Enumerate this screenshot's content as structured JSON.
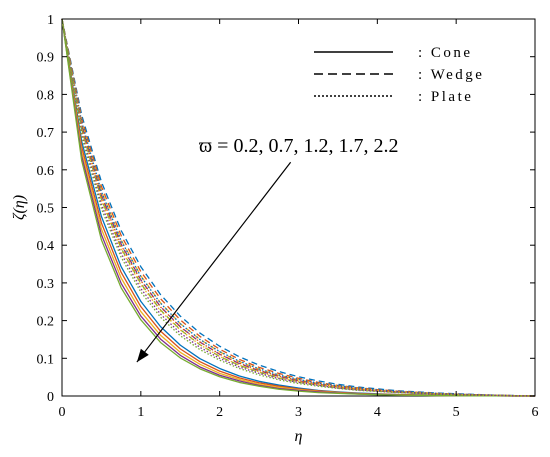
{
  "chart_data": {
    "type": "line",
    "title": "",
    "xlabel": "η",
    "ylabel": "ζ(η)",
    "xlim": [
      0,
      6
    ],
    "ylim": [
      0,
      1
    ],
    "x_ticks": [
      "0",
      "1",
      "2",
      "3",
      "4",
      "5",
      "6"
    ],
    "y_ticks": [
      "0",
      "0.1",
      "0.2",
      "0.3",
      "0.4",
      "0.5",
      "0.6",
      "0.7",
      "0.8",
      "0.9",
      "1"
    ],
    "grid": false,
    "legend": {
      "placement": "top-right",
      "entries": [
        {
          "label": ": Cone",
          "style": "solid"
        },
        {
          "label": ": Wedge",
          "style": "dashed"
        },
        {
          "label": ": Plate",
          "style": "dotted"
        }
      ]
    },
    "annotation": {
      "text": "ϖ = 0.2, 0.7, 1.2, 1.7, 2.2",
      "arrow_from": [
        2.9,
        0.62
      ],
      "arrow_to": [
        0.95,
        0.09
      ]
    },
    "series_colors": [
      "#0072BD",
      "#D95319",
      "#EDB120",
      "#7E2F8E",
      "#77AC30"
    ],
    "x": [
      0,
      0.25,
      0.5,
      0.75,
      1,
      1.25,
      1.5,
      1.75,
      2,
      2.25,
      2.5,
      2.75,
      3,
      3.25,
      3.5,
      3.75,
      4,
      4.25,
      4.5,
      4.75,
      5,
      5.25,
      5.5,
      5.75,
      6
    ],
    "series": [
      {
        "geometry": "cone",
        "param": 0.2,
        "line": "solid",
        "color": "#0072BD",
        "values": [
          1,
          0.675,
          0.476,
          0.343,
          0.251,
          0.184,
          0.135,
          0.099,
          0.073,
          0.053,
          0.039,
          0.029,
          0.021,
          0.015,
          0.011,
          0.008,
          0.006,
          0.004,
          0.003,
          0.002,
          0.0014,
          0.0009,
          0.0005,
          0.0002,
          0
        ]
      },
      {
        "geometry": "cone",
        "param": 0.7,
        "line": "solid",
        "color": "#D95319",
        "values": [
          1,
          0.661,
          0.459,
          0.328,
          0.237,
          0.172,
          0.125,
          0.091,
          0.066,
          0.048,
          0.035,
          0.026,
          0.019,
          0.014,
          0.01,
          0.007,
          0.005,
          0.004,
          0.003,
          0.002,
          0.0012,
          0.0008,
          0.0004,
          0.0002,
          0
        ]
      },
      {
        "geometry": "cone",
        "param": 1.2,
        "line": "solid",
        "color": "#EDB120",
        "values": [
          1,
          0.648,
          0.443,
          0.313,
          0.224,
          0.161,
          0.116,
          0.084,
          0.06,
          0.044,
          0.031,
          0.023,
          0.017,
          0.012,
          0.009,
          0.006,
          0.0045,
          0.003,
          0.0022,
          0.0015,
          0.001,
          0.0007,
          0.0004,
          0.0002,
          0
        ]
      },
      {
        "geometry": "cone",
        "param": 1.7,
        "line": "solid",
        "color": "#7E2F8E",
        "values": [
          1,
          0.636,
          0.428,
          0.299,
          0.212,
          0.151,
          0.108,
          0.077,
          0.055,
          0.04,
          0.028,
          0.02,
          0.015,
          0.011,
          0.008,
          0.0055,
          0.004,
          0.0028,
          0.002,
          0.0014,
          0.001,
          0.0006,
          0.0003,
          0.0001,
          0
        ]
      },
      {
        "geometry": "cone",
        "param": 2.2,
        "line": "solid",
        "color": "#77AC30",
        "values": [
          1,
          0.624,
          0.414,
          0.287,
          0.202,
          0.142,
          0.101,
          0.072,
          0.051,
          0.036,
          0.026,
          0.018,
          0.013,
          0.009,
          0.007,
          0.005,
          0.0035,
          0.0025,
          0.0018,
          0.0012,
          0.0008,
          0.0005,
          0.0003,
          0.0001,
          0
        ]
      },
      {
        "geometry": "wedge",
        "param": 0.2,
        "line": "dashed",
        "color": "#0072BD",
        "values": [
          1,
          0.745,
          0.568,
          0.439,
          0.343,
          0.269,
          0.212,
          0.167,
          0.132,
          0.104,
          0.082,
          0.065,
          0.051,
          0.04,
          0.031,
          0.024,
          0.019,
          0.014,
          0.011,
          0.008,
          0.006,
          0.004,
          0.0025,
          0.001,
          0
        ]
      },
      {
        "geometry": "wedge",
        "param": 0.7,
        "line": "dashed",
        "color": "#D95319",
        "values": [
          1,
          0.735,
          0.556,
          0.426,
          0.33,
          0.258,
          0.202,
          0.158,
          0.124,
          0.097,
          0.076,
          0.06,
          0.047,
          0.036,
          0.028,
          0.022,
          0.017,
          0.013,
          0.01,
          0.007,
          0.005,
          0.0035,
          0.002,
          0.001,
          0
        ]
      },
      {
        "geometry": "wedge",
        "param": 1.2,
        "line": "dashed",
        "color": "#EDB120",
        "values": [
          1,
          0.726,
          0.544,
          0.414,
          0.319,
          0.247,
          0.192,
          0.15,
          0.117,
          0.091,
          0.071,
          0.055,
          0.043,
          0.033,
          0.026,
          0.02,
          0.015,
          0.011,
          0.009,
          0.006,
          0.0045,
          0.003,
          0.002,
          0.001,
          0
        ]
      },
      {
        "geometry": "wedge",
        "param": 1.7,
        "line": "dashed",
        "color": "#7E2F8E",
        "values": [
          1,
          0.717,
          0.533,
          0.403,
          0.308,
          0.237,
          0.184,
          0.143,
          0.111,
          0.086,
          0.067,
          0.052,
          0.04,
          0.031,
          0.024,
          0.018,
          0.014,
          0.01,
          0.008,
          0.006,
          0.004,
          0.003,
          0.0018,
          0.0008,
          0
        ]
      },
      {
        "geometry": "wedge",
        "param": 2.2,
        "line": "dashed",
        "color": "#77AC30",
        "values": [
          1,
          0.708,
          0.522,
          0.392,
          0.298,
          0.228,
          0.176,
          0.136,
          0.105,
          0.081,
          0.063,
          0.048,
          0.037,
          0.029,
          0.022,
          0.017,
          0.013,
          0.01,
          0.007,
          0.005,
          0.0038,
          0.0026,
          0.0016,
          0.0007,
          0
        ]
      },
      {
        "geometry": "plate",
        "param": 0.2,
        "line": "dotted",
        "color": "#0072BD",
        "values": [
          1,
          0.727,
          0.542,
          0.412,
          0.317,
          0.246,
          0.192,
          0.15,
          0.118,
          0.092,
          0.072,
          0.056,
          0.044,
          0.034,
          0.027,
          0.021,
          0.016,
          0.012,
          0.009,
          0.007,
          0.005,
          0.0035,
          0.002,
          0.001,
          0
        ]
      },
      {
        "geometry": "plate",
        "param": 0.7,
        "line": "dotted",
        "color": "#D95319",
        "values": [
          1,
          0.717,
          0.53,
          0.4,
          0.306,
          0.236,
          0.183,
          0.143,
          0.111,
          0.087,
          0.068,
          0.053,
          0.041,
          0.032,
          0.025,
          0.019,
          0.015,
          0.011,
          0.008,
          0.006,
          0.0045,
          0.003,
          0.0018,
          0.0008,
          0
        ]
      },
      {
        "geometry": "plate",
        "param": 1.2,
        "line": "dotted",
        "color": "#EDB120",
        "values": [
          1,
          0.707,
          0.518,
          0.389,
          0.295,
          0.226,
          0.175,
          0.136,
          0.105,
          0.082,
          0.064,
          0.049,
          0.038,
          0.03,
          0.023,
          0.018,
          0.014,
          0.01,
          0.008,
          0.006,
          0.004,
          0.0028,
          0.0017,
          0.0007,
          0
        ]
      },
      {
        "geometry": "plate",
        "param": 1.7,
        "line": "dotted",
        "color": "#7E2F8E",
        "values": [
          1,
          0.698,
          0.507,
          0.378,
          0.285,
          0.217,
          0.167,
          0.129,
          0.1,
          0.077,
          0.06,
          0.046,
          0.036,
          0.028,
          0.021,
          0.016,
          0.013,
          0.01,
          0.007,
          0.005,
          0.0037,
          0.0025,
          0.0015,
          0.0006,
          0
        ]
      },
      {
        "geometry": "plate",
        "param": 2.2,
        "line": "dotted",
        "color": "#77AC30",
        "values": [
          1,
          0.689,
          0.497,
          0.368,
          0.276,
          0.209,
          0.16,
          0.123,
          0.095,
          0.073,
          0.056,
          0.043,
          0.033,
          0.026,
          0.02,
          0.015,
          0.012,
          0.009,
          0.007,
          0.005,
          0.0034,
          0.0023,
          0.0014,
          0.0006,
          0
        ]
      }
    ]
  }
}
